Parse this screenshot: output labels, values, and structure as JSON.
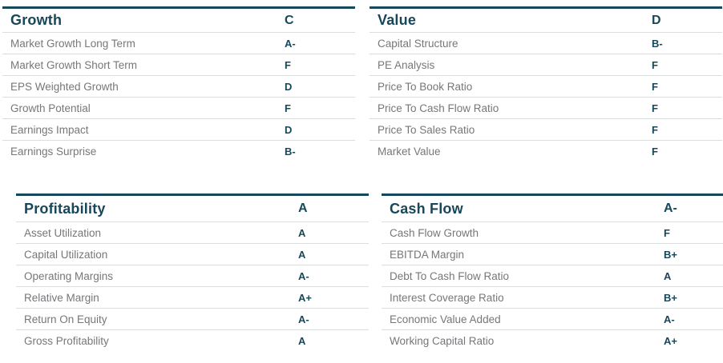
{
  "theme": {
    "accent_color": "#17475a",
    "label_color": "#76777a",
    "divider_color": "#dcdddd",
    "background_color": "#ffffff"
  },
  "panels": [
    {
      "title": "Growth",
      "grade": "C",
      "rows": [
        {
          "label": "Market Growth Long Term",
          "grade": "A-"
        },
        {
          "label": "Market Growth Short Term",
          "grade": "F"
        },
        {
          "label": "EPS Weighted Growth",
          "grade": "D"
        },
        {
          "label": "Growth Potential",
          "grade": "F"
        },
        {
          "label": "Earnings Impact",
          "grade": "D"
        },
        {
          "label": "Earnings Surprise",
          "grade": "B-"
        }
      ]
    },
    {
      "title": "Value",
      "grade": "D",
      "rows": [
        {
          "label": "Capital Structure",
          "grade": "B-"
        },
        {
          "label": "PE Analysis",
          "grade": "F"
        },
        {
          "label": "Price To Book Ratio",
          "grade": "F"
        },
        {
          "label": "Price To Cash Flow Ratio",
          "grade": "F"
        },
        {
          "label": "Price To Sales Ratio",
          "grade": "F"
        },
        {
          "label": "Market Value",
          "grade": "F"
        }
      ]
    },
    {
      "title": "Profitability",
      "grade": "A",
      "rows": [
        {
          "label": "Asset Utilization",
          "grade": "A"
        },
        {
          "label": "Capital Utilization",
          "grade": "A"
        },
        {
          "label": "Operating Margins",
          "grade": "A-"
        },
        {
          "label": "Relative Margin",
          "grade": "A+"
        },
        {
          "label": "Return On Equity",
          "grade": "A-"
        },
        {
          "label": "Gross Profitability",
          "grade": "A"
        }
      ]
    },
    {
      "title": "Cash Flow",
      "grade": "A-",
      "rows": [
        {
          "label": "Cash Flow Growth",
          "grade": "F"
        },
        {
          "label": "EBITDA Margin",
          "grade": "B+"
        },
        {
          "label": "Debt To Cash Flow Ratio",
          "grade": "A"
        },
        {
          "label": "Interest Coverage Ratio",
          "grade": "B+"
        },
        {
          "label": "Economic Value Added",
          "grade": "A-"
        },
        {
          "label": "Working Capital Ratio",
          "grade": "A+"
        }
      ]
    }
  ]
}
